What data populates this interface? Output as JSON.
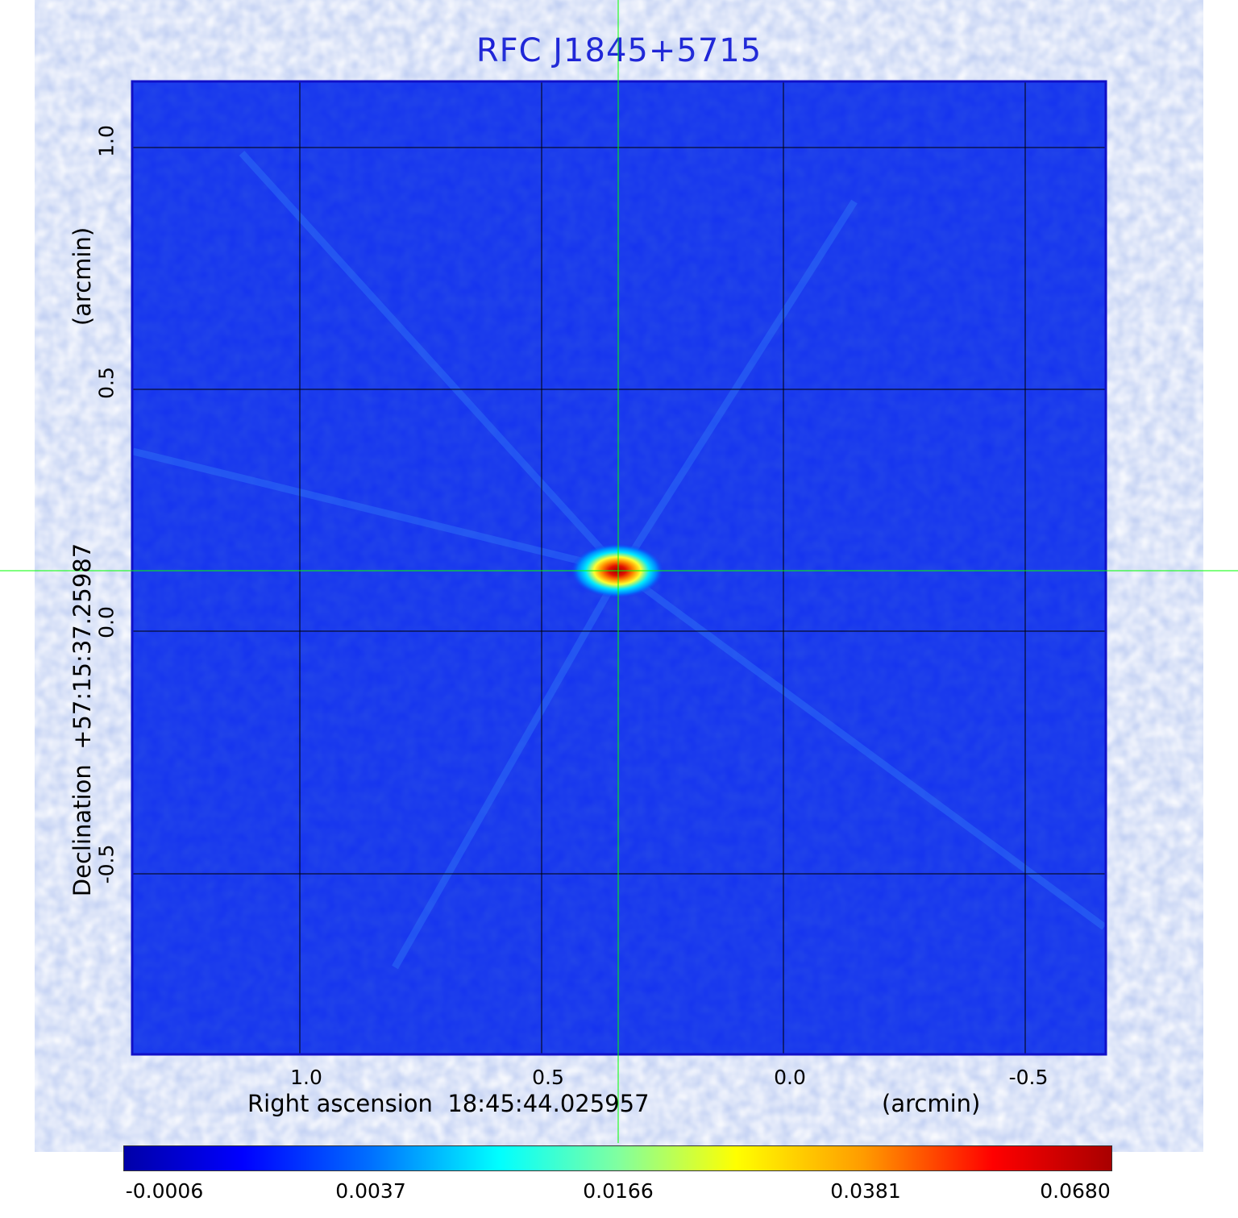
{
  "title": "RFC J1845+5715",
  "x_axis": {
    "label": "Right ascension  18:45:44.025957",
    "unit": "(arcmin)",
    "ticks": [
      "1.0",
      "0.5",
      "0.0",
      "-0.5"
    ]
  },
  "y_axis": {
    "label": "Declination  +57:15:37.25987",
    "unit": "(arcmin)",
    "ticks": [
      "1.0",
      "0.5",
      "0.0",
      "-0.5"
    ]
  },
  "colorbar": {
    "ticks": [
      "-0.0006",
      "0.0037",
      "0.0166",
      "0.0381",
      "0.0680"
    ]
  },
  "colors": {
    "title": "#1a1ad6",
    "frame": "#1010c8",
    "background_map": "#1432f0",
    "crosshair": "#00ff00",
    "grid": "#000000"
  },
  "source": {
    "x_arcmin": 0.34,
    "y_arcmin": 0.12
  }
}
